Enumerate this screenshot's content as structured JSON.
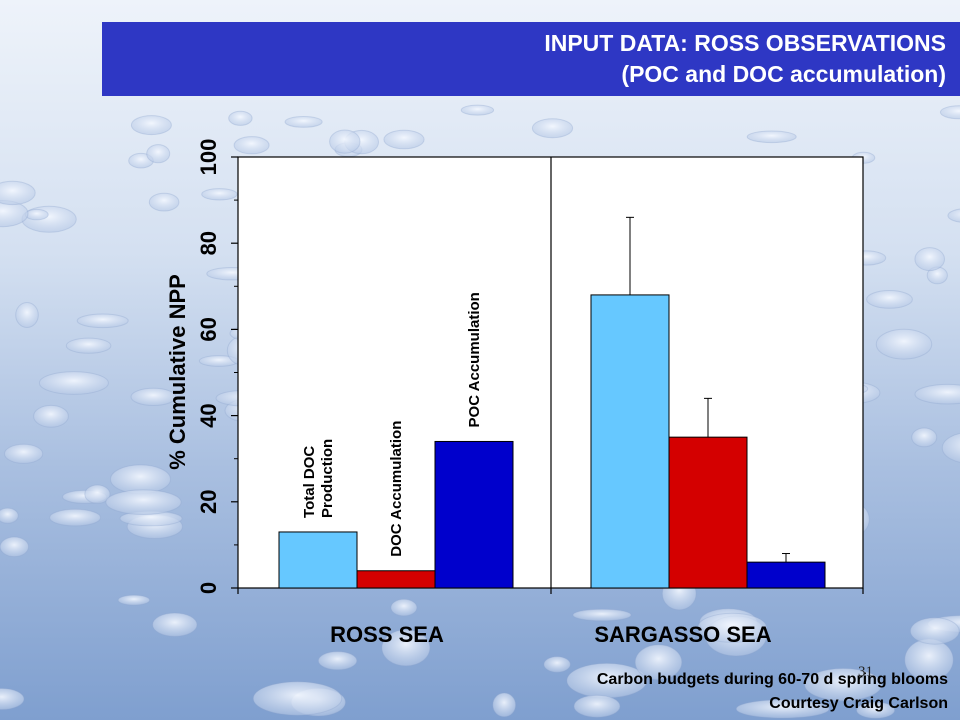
{
  "slide": {
    "title_line1": "INPUT DATA: ROSS OBSERVATIONS",
    "title_line2": "(POC and DOC accumulation)",
    "footer_line1": "Carbon budgets during 60-70 d spring blooms",
    "footer_line2": "Courtesy Craig Carlson",
    "slide_number": "31"
  },
  "chart_data": {
    "type": "bar",
    "ylabel": "% Cumulative NPP",
    "ylim": [
      0,
      100
    ],
    "yticks": [
      0,
      20,
      40,
      60,
      80,
      100
    ],
    "grid": false,
    "categories": [
      "ROSS SEA",
      "SARGASSO SEA"
    ],
    "series": [
      {
        "name": "Total DOC Production",
        "color": "#66c8ff",
        "values": [
          13,
          68
        ],
        "error": [
          null,
          18
        ]
      },
      {
        "name": "DOC Accumulation",
        "color": "#d40000",
        "values": [
          4,
          35
        ],
        "error": [
          null,
          9
        ]
      },
      {
        "name": "POC Accumulation",
        "color": "#0000cc",
        "values": [
          34,
          6
        ],
        "error": [
          null,
          2
        ]
      }
    ],
    "annotations": [
      {
        "text_lines": [
          "Total DOC",
          "Production"
        ],
        "series": 0,
        "category": 0
      },
      {
        "text_lines": [
          "DOC Accumulation"
        ],
        "series": 1,
        "category": 0
      },
      {
        "text_lines": [
          "POC Accumulation"
        ],
        "series": 2,
        "category": 0
      }
    ]
  }
}
